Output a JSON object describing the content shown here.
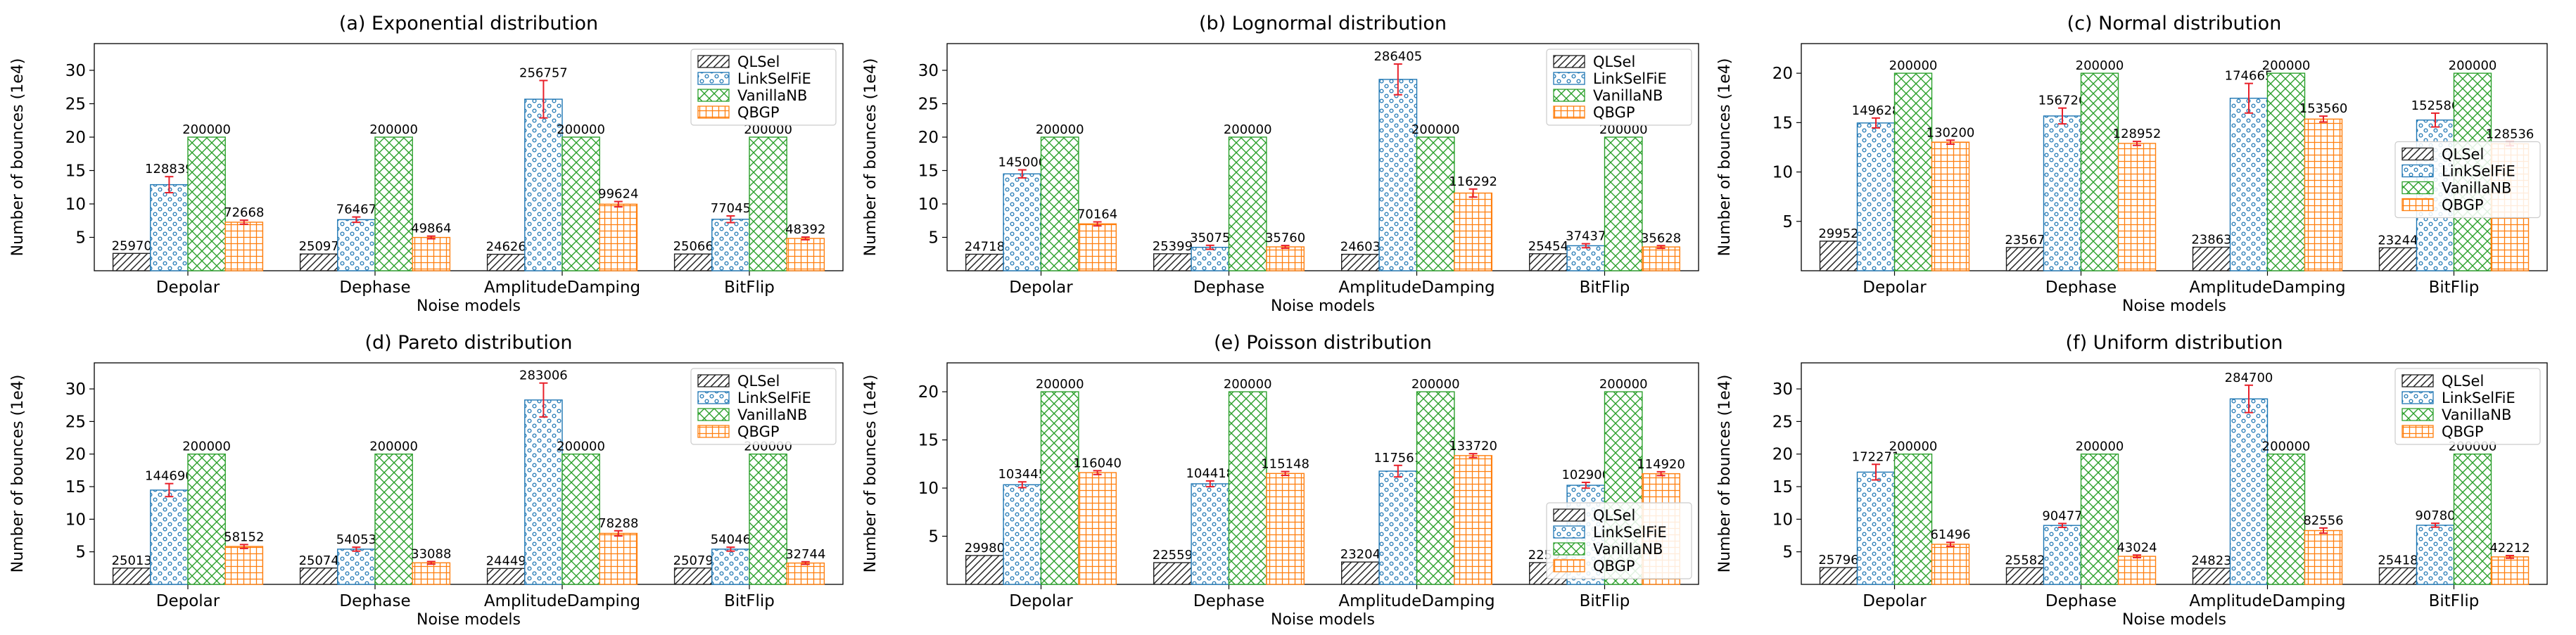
{
  "chart_data": [
    {
      "type": "bar",
      "title": "(a) Exponential distribution",
      "xlabel": "Noise models",
      "ylabel": "Number of bounces (1e4)",
      "categories": [
        "Depolar",
        "Dephase",
        "AmplitudeDamping",
        "BitFlip"
      ],
      "ylim": [
        0,
        34
      ],
      "yticks": [
        5,
        10,
        15,
        20,
        25,
        30
      ],
      "legend": "top-right",
      "series": [
        {
          "name": "QLSel",
          "values": [
            25970,
            25097,
            24626,
            25066
          ]
        },
        {
          "name": "LinkSelFiE",
          "values": [
            128839,
            76467,
            256757,
            77045
          ]
        },
        {
          "name": "VanillaNB",
          "values": [
            200000,
            200000,
            200000,
            200000
          ]
        },
        {
          "name": "QBGP",
          "values": [
            72668,
            49864,
            99624,
            48392
          ]
        }
      ],
      "error": {
        "LinkSelFiE": [
          1.2,
          0.4,
          2.8,
          0.5
        ],
        "QBGP": [
          0.3,
          0.2,
          0.4,
          0.2
        ]
      }
    },
    {
      "type": "bar",
      "title": "(b) Lognormal distribution",
      "xlabel": "Noise models",
      "ylabel": "Number of bounces (1e4)",
      "categories": [
        "Depolar",
        "Dephase",
        "AmplitudeDamping",
        "BitFlip"
      ],
      "ylim": [
        0,
        34
      ],
      "yticks": [
        5,
        10,
        15,
        20,
        25,
        30
      ],
      "legend": "top-right",
      "series": [
        {
          "name": "QLSel",
          "values": [
            24718,
            25399,
            24603,
            25454
          ]
        },
        {
          "name": "LinkSelFiE",
          "values": [
            145000,
            35075,
            286405,
            37437
          ]
        },
        {
          "name": "VanillaNB",
          "values": [
            200000,
            200000,
            200000,
            200000
          ]
        },
        {
          "name": "QBGP",
          "values": [
            70164,
            35760,
            116292,
            35628
          ]
        }
      ],
      "error": {
        "LinkSelFiE": [
          0.6,
          0.3,
          2.3,
          0.3
        ],
        "QBGP": [
          0.3,
          0.2,
          0.6,
          0.2
        ]
      }
    },
    {
      "type": "bar",
      "title": "(c) Normal distribution",
      "xlabel": "Noise models",
      "ylabel": "Number of bounces (1e4)",
      "categories": [
        "Depolar",
        "Dephase",
        "AmplitudeDamping",
        "BitFlip"
      ],
      "ylim": [
        0,
        23
      ],
      "yticks": [
        5,
        10,
        15,
        20
      ],
      "legend": "center-right",
      "series": [
        {
          "name": "QLSel",
          "values": [
            29952,
            23567,
            23863,
            23244
          ]
        },
        {
          "name": "LinkSelFiE",
          "values": [
            149628,
            156726,
            174665,
            152586
          ]
        },
        {
          "name": "VanillaNB",
          "values": [
            200000,
            200000,
            200000,
            200000
          ]
        },
        {
          "name": "QBGP",
          "values": [
            130200,
            128952,
            153560,
            128536
          ]
        }
      ],
      "error": {
        "LinkSelFiE": [
          0.5,
          0.8,
          1.5,
          0.7
        ],
        "QBGP": [
          0.2,
          0.2,
          0.3,
          0.2
        ]
      }
    },
    {
      "type": "bar",
      "title": "(d) Pareto distribution",
      "xlabel": "Noise models",
      "ylabel": "Number of bounces (1e4)",
      "categories": [
        "Depolar",
        "Dephase",
        "AmplitudeDamping",
        "BitFlip"
      ],
      "ylim": [
        0,
        34
      ],
      "yticks": [
        5,
        10,
        15,
        20,
        25,
        30
      ],
      "legend": "top-right",
      "series": [
        {
          "name": "QLSel",
          "values": [
            25013,
            25074,
            24449,
            25079
          ]
        },
        {
          "name": "LinkSelFiE",
          "values": [
            144690,
            54053,
            283006,
            54046
          ]
        },
        {
          "name": "VanillaNB",
          "values": [
            200000,
            200000,
            200000,
            200000
          ]
        },
        {
          "name": "QBGP",
          "values": [
            58152,
            33088,
            78288,
            32744
          ]
        }
      ],
      "error": {
        "LinkSelFiE": [
          1.0,
          0.3,
          2.6,
          0.3
        ],
        "QBGP": [
          0.3,
          0.2,
          0.4,
          0.2
        ]
      }
    },
    {
      "type": "bar",
      "title": "(e) Poisson distribution",
      "xlabel": "Noise models",
      "ylabel": "Number of bounces (1e4)",
      "categories": [
        "Depolar",
        "Dephase",
        "AmplitudeDamping",
        "BitFlip"
      ],
      "ylim": [
        0,
        23
      ],
      "yticks": [
        5,
        10,
        15,
        20
      ],
      "legend": "lower-right",
      "series": [
        {
          "name": "QLSel",
          "values": [
            29980,
            22559,
            23204,
            22593
          ]
        },
        {
          "name": "LinkSelFiE",
          "values": [
            103445,
            104418,
            117561,
            102900
          ]
        },
        {
          "name": "VanillaNB",
          "values": [
            200000,
            200000,
            200000,
            200000
          ]
        },
        {
          "name": "QBGP",
          "values": [
            116040,
            115148,
            133720,
            114920
          ]
        }
      ],
      "error": {
        "LinkSelFiE": [
          0.3,
          0.3,
          0.6,
          0.3
        ],
        "QBGP": [
          0.2,
          0.2,
          0.2,
          0.2
        ]
      }
    },
    {
      "type": "bar",
      "title": "(f) Uniform distribution",
      "xlabel": "Noise models",
      "ylabel": "Number of bounces (1e4)",
      "categories": [
        "Depolar",
        "Dephase",
        "AmplitudeDamping",
        "BitFlip"
      ],
      "ylim": [
        0,
        34
      ],
      "yticks": [
        5,
        10,
        15,
        20,
        25,
        30
      ],
      "legend": "top-right",
      "series": [
        {
          "name": "QLSel",
          "values": [
            25796,
            25582,
            24823,
            25418
          ]
        },
        {
          "name": "LinkSelFiE",
          "values": [
            172271,
            90477,
            284700,
            90780
          ]
        },
        {
          "name": "VanillaNB",
          "values": [
            200000,
            200000,
            200000,
            200000
          ]
        },
        {
          "name": "QBGP",
          "values": [
            61496,
            43024,
            82556,
            42212
          ]
        }
      ],
      "error": {
        "LinkSelFiE": [
          1.2,
          0.3,
          2.1,
          0.3
        ],
        "QBGP": [
          0.3,
          0.2,
          0.4,
          0.2
        ]
      }
    }
  ],
  "colors": {
    "QLSel": "#222222",
    "LinkSelFiE": "#1f77b4",
    "VanillaNB": "#2ca02c",
    "QBGP": "#ff7f0e",
    "error_bar": "#e8202a"
  }
}
